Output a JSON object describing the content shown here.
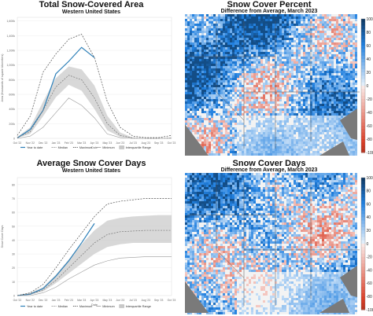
{
  "chart_data": [
    {
      "type": "line",
      "title": "Total Snow-Covered Area",
      "subtitle": "Western United States",
      "xlabel": "Date",
      "ylabel": "Area (thousands of square kilometers)",
      "x": [
        "Oct '22",
        "Nov '22",
        "Dec '22",
        "Jan '23",
        "Feb '23",
        "Mar '23",
        "Apr '23",
        "May '23",
        "Jun '23",
        "Jul '23",
        "Aug '23",
        "Sep '23",
        "Oct '23"
      ],
      "yticks": [
        "0",
        "200k",
        "400k",
        "600k",
        "800k",
        "1,000k",
        "1,200k",
        "1,400k",
        "1,600k"
      ],
      "ylim": [
        0,
        1650
      ],
      "legend": [
        "Year to date",
        "Median",
        "Maximum",
        "Minimum",
        "Interquartile Range"
      ],
      "series": [
        {
          "name": "Year to date",
          "color": "#2c7fb8",
          "values": [
            5,
            120,
            380,
            880,
            1050,
            1240,
            1100,
            null,
            null,
            null,
            null,
            null,
            null
          ]
        },
        {
          "name": "Median",
          "color": "#777777",
          "values": [
            10,
            90,
            380,
            700,
            860,
            800,
            550,
            200,
            40,
            5,
            0,
            0,
            5
          ]
        },
        {
          "name": "Maximum",
          "color": "#333333",
          "values": [
            40,
            300,
            900,
            1150,
            1350,
            1420,
            1100,
            500,
            150,
            30,
            10,
            10,
            40
          ]
        },
        {
          "name": "Minimum",
          "color": "#999999",
          "values": [
            0,
            30,
            150,
            350,
            550,
            450,
            280,
            60,
            10,
            0,
            0,
            0,
            0
          ]
        }
      ],
      "iqr": {
        "name": "Interquartile Range",
        "lower": [
          5,
          60,
          300,
          560,
          730,
          650,
          400,
          110,
          20,
          2,
          0,
          0,
          2
        ],
        "upper": [
          20,
          150,
          500,
          820,
          980,
          940,
          720,
          310,
          80,
          10,
          2,
          2,
          10
        ]
      }
    },
    {
      "type": "line",
      "title": "Average Snow Cover Days",
      "subtitle": "Western United States",
      "xlabel": "Date",
      "ylabel": "Snow Cover Days",
      "x": [
        "Oct '22",
        "Nov '22",
        "Dec '22",
        "Jan '23",
        "Feb '23",
        "Mar '23",
        "Apr '23",
        "May '23",
        "Jun '23",
        "Jul '23",
        "Aug '23",
        "Sep '23",
        "Oct '23"
      ],
      "yticks": [
        "0",
        "10",
        "20",
        "30",
        "40",
        "50",
        "60",
        "70",
        "80"
      ],
      "ylim": [
        0,
        85
      ],
      "legend": [
        "Year to date",
        "Median",
        "Maximum",
        "Minimum",
        "Interquartile Range"
      ],
      "series": [
        {
          "name": "Year to date",
          "color": "#2c7fb8",
          "values": [
            0,
            1,
            5,
            14,
            25,
            38,
            52,
            null,
            null,
            null,
            null,
            null,
            null
          ]
        },
        {
          "name": "Median",
          "color": "#777777",
          "values": [
            0,
            1,
            4,
            11,
            20,
            29,
            38,
            44,
            46,
            46.5,
            47,
            47,
            47
          ]
        },
        {
          "name": "Maximum",
          "color": "#333333",
          "values": [
            0,
            2,
            8,
            20,
            33,
            45,
            57,
            66,
            68,
            69,
            70,
            70,
            70
          ]
        },
        {
          "name": "Minimum",
          "color": "#999999",
          "values": [
            0,
            0,
            2,
            6,
            12,
            17,
            22,
            25,
            27,
            27.5,
            28,
            28,
            28
          ]
        }
      ],
      "iqr": {
        "name": "Interquartile Range",
        "lower": [
          0,
          0.5,
          3,
          9,
          16,
          23,
          30,
          35,
          37,
          38,
          38,
          38,
          38
        ],
        "upper": [
          0,
          2,
          6,
          15,
          26,
          37,
          47,
          54,
          56,
          57,
          57.5,
          58,
          58
        ]
      }
    },
    {
      "type": "heatmap",
      "title": "Snow Cover Percent",
      "subtitle": "Difference from Average, March 2023",
      "colorbar": {
        "ticks": [
          "100",
          "80",
          "60",
          "40",
          "20",
          "0",
          "-20",
          "-40",
          "-60",
          "-80",
          "-100"
        ],
        "min": -100,
        "max": 100,
        "positive_color": "#08306b",
        "negative_color": "#b2182b"
      }
    },
    {
      "type": "heatmap",
      "title": "Snow Cover Days",
      "subtitle": "Difference from Average, March 2023",
      "colorbar": {
        "ticks": [
          "100",
          "80",
          "60",
          "40",
          "20",
          "0",
          "-20",
          "-40",
          "-60",
          "-80",
          "-100"
        ],
        "min": -100,
        "max": 100,
        "positive_color": "#08306b",
        "negative_color": "#b2182b"
      }
    }
  ]
}
